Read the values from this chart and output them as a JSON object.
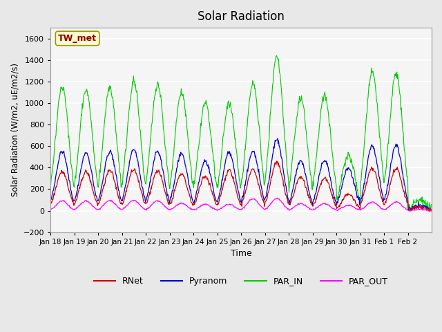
{
  "title": "Solar Radiation",
  "ylabel": "Solar Radiation (W/m2, uE/m2/s)",
  "xlabel": "Time",
  "ylim": [
    -200,
    1700
  ],
  "yticks": [
    -200,
    0,
    200,
    400,
    600,
    800,
    1000,
    1200,
    1400,
    1600
  ],
  "annotation_text": "TW_met",
  "annotation_color": "#8B0000",
  "annotation_bg": "#FFFACD",
  "annotation_edge": "#999900",
  "bg_color": "#E8E8E8",
  "plot_bg": "#F5F5F5",
  "grid_color": "white",
  "colors": {
    "RNet": "#CC0000",
    "Pyranom": "#0000CC",
    "PAR_IN": "#00CC00",
    "PAR_OUT": "#FF00FF"
  },
  "x_tick_labels": [
    "Jan 18",
    "Jan 19",
    "Jan 20",
    "Jan 21",
    "Jan 22",
    "Jan 23",
    "Jan 24",
    "Jan 25",
    "Jan 26",
    "Jan 27",
    "Jan 28",
    "Jan 29",
    "Jan 30",
    "Jan 31",
    "Feb 1",
    "Feb 2"
  ],
  "n_days": 16,
  "points_per_day": 48,
  "par_peaks": [
    1150,
    1120,
    1150,
    1200,
    1180,
    1100,
    1000,
    1000,
    1180,
    1430,
    1050,
    1080,
    510,
    1300,
    1280,
    100
  ],
  "pyran_peaks": [
    550,
    540,
    550,
    570,
    550,
    530,
    460,
    540,
    550,
    660,
    460,
    470,
    400,
    600,
    610,
    50
  ],
  "rnet_peaks": [
    360,
    360,
    370,
    380,
    370,
    340,
    320,
    370,
    380,
    450,
    310,
    300,
    150,
    400,
    390,
    30
  ],
  "pout_peaks": [
    90,
    90,
    95,
    95,
    90,
    70,
    60,
    60,
    110,
    115,
    65,
    65,
    50,
    80,
    80,
    10
  ]
}
